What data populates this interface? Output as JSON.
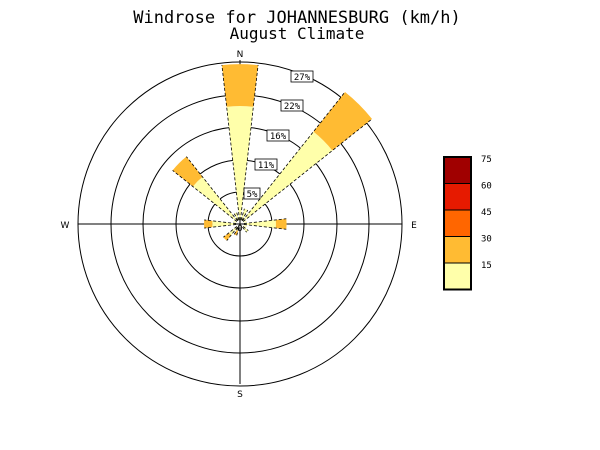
{
  "chart_data": {
    "type": "windrose",
    "title": "Windrose for JOHANNESBURG (km/h)",
    "subtitle": "August Climate",
    "directions": {
      "north": "N",
      "east": "E",
      "south": "S",
      "west": "W"
    },
    "ring_labels": [
      "5%",
      "11%",
      "16%",
      "22%",
      "27%"
    ],
    "ring_values": [
      5,
      11,
      16,
      22,
      27
    ],
    "calm_label": "0",
    "speed_bins": [
      {
        "label": "15",
        "color": "#ffffaa"
      },
      {
        "label": "30",
        "color": "#ffbb33"
      },
      {
        "label": "45",
        "color": "#ff6600"
      },
      {
        "label": "60",
        "color": "#e61a00"
      },
      {
        "label": "75",
        "color": "#a00000"
      }
    ],
    "sectors": [
      {
        "direction": "N",
        "bins": [
          20.0,
          7.1
        ]
      },
      {
        "direction": "NNE",
        "bins": [
          2.7
        ]
      },
      {
        "direction": "NE",
        "bins": [
          20.0,
          8.6
        ]
      },
      {
        "direction": "ENE",
        "bins": [
          1.2
        ]
      },
      {
        "direction": "E",
        "bins": [
          6.1,
          1.8
        ]
      },
      {
        "direction": "ESE",
        "bins": [
          1.2
        ]
      },
      {
        "direction": "SE",
        "bins": [
          1.8
        ]
      },
      {
        "direction": "SSE",
        "bins": [
          0.6
        ]
      },
      {
        "direction": "S",
        "bins": [
          0.4
        ]
      },
      {
        "direction": "SSW",
        "bins": [
          1.2,
          0.8
        ]
      },
      {
        "direction": "SW",
        "bins": [
          2.4,
          1.2
        ]
      },
      {
        "direction": "WSW",
        "bins": [
          0.6
        ]
      },
      {
        "direction": "W",
        "bins": [
          4.7,
          1.4
        ]
      },
      {
        "direction": "WNW",
        "bins": [
          1.2
        ]
      },
      {
        "direction": "NW",
        "bins": [
          10.2,
          4.4
        ]
      },
      {
        "direction": "NNW",
        "bins": [
          2.0
        ]
      }
    ]
  }
}
